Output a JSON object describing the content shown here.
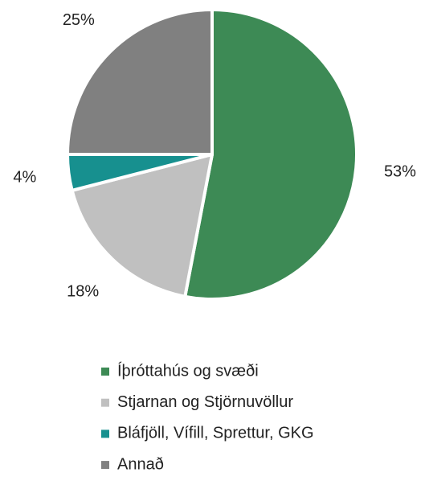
{
  "chart_data": {
    "type": "pie",
    "categories": [
      "Íþróttahús og svæði",
      "Stjarnan og Stjörnuvöllur",
      "Bláfjöll, Vífill, Sprettur, GKG",
      "Annað"
    ],
    "values": [
      53,
      18,
      4,
      25
    ],
    "value_labels": [
      "53%",
      "18%",
      "4%",
      "25%"
    ],
    "colors": [
      "#3d8a55",
      "#c0c0c0",
      "#17908f",
      "#808080"
    ],
    "legend": "bottom"
  }
}
